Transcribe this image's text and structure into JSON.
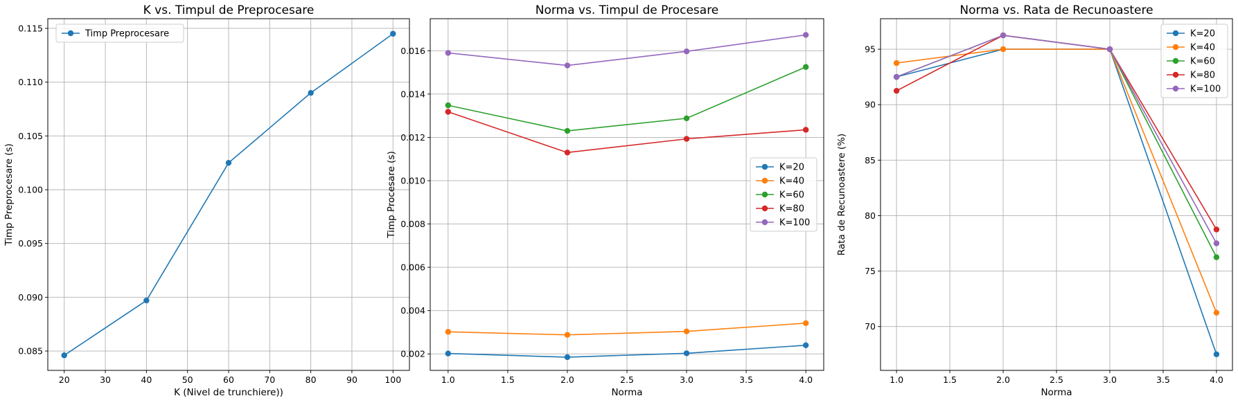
{
  "colors": {
    "K=20": "#1f77b4",
    "K=40": "#ff7f0e",
    "K=60": "#2ca02c",
    "K=80": "#d62728",
    "K=100": "#9467bd",
    "grid": "#b0b0b0"
  },
  "chart_data": [
    {
      "type": "line",
      "title": "K vs. Timpul de Preprocesare",
      "xlabel": "K (Nivel de trunchiere))",
      "ylabel": "Timp Preprocesare (s)",
      "xlim": [
        16,
        104
      ],
      "ylim": [
        0.0832,
        0.1159
      ],
      "xticks": [
        20,
        30,
        40,
        50,
        60,
        70,
        80,
        90,
        100
      ],
      "xtick_labels": [
        "20",
        "30",
        "40",
        "50",
        "60",
        "70",
        "80",
        "90",
        "100"
      ],
      "yticks": [
        0.085,
        0.09,
        0.095,
        0.1,
        0.105,
        0.11,
        0.115
      ],
      "ytick_labels": [
        "0.085",
        "0.090",
        "0.095",
        "0.100",
        "0.105",
        "0.110",
        "0.115"
      ],
      "grid": true,
      "legend_position": "top-left",
      "x": [
        20,
        40,
        60,
        80,
        100
      ],
      "series": [
        {
          "name": "Timp Preprocesare",
          "color": "#1f77b4",
          "values": [
            0.0846,
            0.0897,
            0.1025,
            0.109,
            0.1145
          ]
        }
      ]
    },
    {
      "type": "line",
      "title": "Norma vs. Timpul de Procesare",
      "xlabel": "Norma",
      "ylabel": "Timp Procesare (s)",
      "xlim": [
        0.85,
        4.15
      ],
      "ylim": [
        0.00124,
        0.01748
      ],
      "xticks": [
        1.0,
        1.5,
        2.0,
        2.5,
        3.0,
        3.5,
        4.0
      ],
      "xtick_labels": [
        "1.0",
        "1.5",
        "2.0",
        "2.5",
        "3.0",
        "3.5",
        "4.0"
      ],
      "yticks": [
        0.002,
        0.004,
        0.006,
        0.008,
        0.01,
        0.012,
        0.014,
        0.016
      ],
      "ytick_labels": [
        "0.002",
        "0.004",
        "0.006",
        "0.008",
        "0.010",
        "0.012",
        "0.014",
        "0.016"
      ],
      "grid": true,
      "legend_position": "center-right",
      "x": [
        1,
        2,
        3,
        4
      ],
      "series": [
        {
          "name": "K=20",
          "color": "#1f77b4",
          "values": [
            0.00202,
            0.00185,
            0.00203,
            0.0024
          ]
        },
        {
          "name": "K=40",
          "color": "#ff7f0e",
          "values": [
            0.00302,
            0.00288,
            0.00304,
            0.00342
          ]
        },
        {
          "name": "K=60",
          "color": "#2ca02c",
          "values": [
            0.01348,
            0.0123,
            0.01288,
            0.01525
          ]
        },
        {
          "name": "K=80",
          "color": "#d62728",
          "values": [
            0.01318,
            0.0113,
            0.01193,
            0.01235
          ]
        },
        {
          "name": "K=100",
          "color": "#9467bd",
          "values": [
            0.0159,
            0.01532,
            0.01597,
            0.01673
          ]
        }
      ]
    },
    {
      "type": "line",
      "title": "Norma vs. Rata de Recunoastere",
      "xlabel": "Norma",
      "ylabel": "Rata de Recunoastere (%)",
      "xlim": [
        0.85,
        4.15
      ],
      "ylim": [
        66.05,
        97.75
      ],
      "xticks": [
        1.0,
        1.5,
        2.0,
        2.5,
        3.0,
        3.5,
        4.0
      ],
      "xtick_labels": [
        "1.0",
        "1.5",
        "2.0",
        "2.5",
        "3.0",
        "3.5",
        "4.0"
      ],
      "yticks": [
        70,
        75,
        80,
        85,
        90,
        95
      ],
      "ytick_labels": [
        "70",
        "75",
        "80",
        "85",
        "90",
        "95"
      ],
      "grid": true,
      "legend_position": "top-right",
      "x": [
        1,
        2,
        3,
        4
      ],
      "series": [
        {
          "name": "K=20",
          "color": "#1f77b4",
          "values": [
            92.5,
            95.0,
            95.0,
            67.5
          ]
        },
        {
          "name": "K=40",
          "color": "#ff7f0e",
          "values": [
            93.75,
            95.0,
            95.0,
            71.25
          ]
        },
        {
          "name": "K=60",
          "color": "#2ca02c",
          "values": [
            92.5,
            96.25,
            95.0,
            76.25
          ]
        },
        {
          "name": "K=80",
          "color": "#d62728",
          "values": [
            91.25,
            96.25,
            95.0,
            78.75
          ]
        },
        {
          "name": "K=100",
          "color": "#9467bd",
          "values": [
            92.5,
            96.25,
            95.0,
            77.5
          ]
        }
      ]
    }
  ]
}
